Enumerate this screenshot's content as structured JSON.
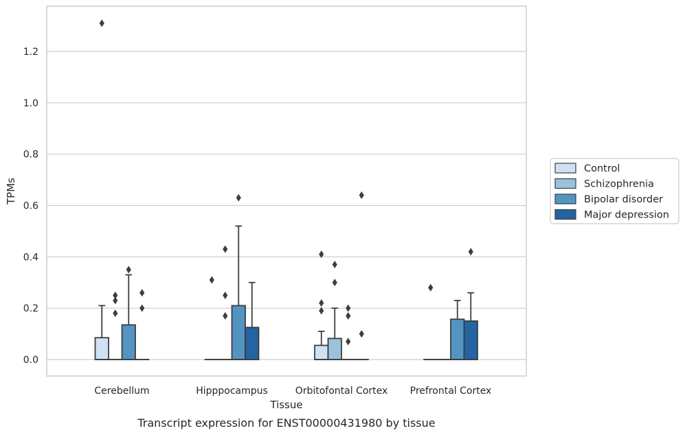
{
  "caption": "Transcript expression for ENST00000431980 by tissue",
  "chart_data": {
    "type": "box",
    "xlabel": "Tissue",
    "ylabel": "TPMs",
    "ylim": [
      -0.065,
      1.36
    ],
    "yticks": [
      0.0,
      0.2,
      0.4,
      0.6,
      0.8,
      1.0,
      1.2
    ],
    "ytick_labels": [
      "0.0",
      "0.2",
      "0.4",
      "0.6",
      "0.8",
      "1.0",
      "1.2"
    ],
    "grid": "horizontal",
    "legend_position": "right-outside",
    "categories": [
      "Cerebellum",
      "Hipppocampus",
      "Orbitofontal Cortex",
      "Prefrontal Cortex"
    ],
    "series": [
      {
        "name": "Control",
        "color": "#d0e1f2",
        "boxes": [
          {
            "q1": 0.0,
            "median": 0.0,
            "q3": 0.085,
            "whisker_low": 0.0,
            "whisker_high": 0.21,
            "outliers": [
              1.31
            ]
          },
          {
            "q1": 0.0,
            "median": 0.0,
            "q3": 0.0,
            "whisker_low": 0.0,
            "whisker_high": 0.0,
            "outliers": [
              0.31
            ]
          },
          {
            "q1": 0.0,
            "median": 0.0,
            "q3": 0.055,
            "whisker_low": 0.0,
            "whisker_high": 0.11,
            "outliers": [
              0.41,
              0.22,
              0.19
            ]
          },
          {
            "q1": 0.0,
            "median": 0.0,
            "q3": 0.0,
            "whisker_low": 0.0,
            "whisker_high": 0.0,
            "outliers": [
              0.28
            ]
          }
        ]
      },
      {
        "name": "Schizophrenia",
        "color": "#9ac2dc",
        "boxes": [
          {
            "q1": 0.0,
            "median": 0.0,
            "q3": 0.0,
            "whisker_low": 0.0,
            "whisker_high": 0.0,
            "outliers": [
              0.25,
              0.23,
              0.18
            ]
          },
          {
            "q1": 0.0,
            "median": 0.0,
            "q3": 0.0,
            "whisker_low": 0.0,
            "whisker_high": 0.0,
            "outliers": [
              0.43,
              0.25,
              0.17
            ]
          },
          {
            "q1": 0.0,
            "median": 0.0,
            "q3": 0.082,
            "whisker_low": 0.0,
            "whisker_high": 0.2,
            "outliers": [
              0.37,
              0.3
            ]
          },
          {
            "q1": 0.0,
            "median": 0.0,
            "q3": 0.0,
            "whisker_low": 0.0,
            "whisker_high": 0.0,
            "outliers": []
          }
        ]
      },
      {
        "name": "Bipolar disorder",
        "color": "#5394c2",
        "boxes": [
          {
            "q1": 0.0,
            "median": 0.0,
            "q3": 0.135,
            "whisker_low": 0.0,
            "whisker_high": 0.33,
            "outliers": [
              0.35
            ]
          },
          {
            "q1": 0.0,
            "median": 0.0,
            "q3": 0.21,
            "whisker_low": 0.0,
            "whisker_high": 0.52,
            "outliers": [
              0.63
            ]
          },
          {
            "q1": 0.0,
            "median": 0.0,
            "q3": 0.0,
            "whisker_low": 0.0,
            "whisker_high": 0.0,
            "outliers": [
              0.2,
              0.17,
              0.07
            ]
          },
          {
            "q1": 0.0,
            "median": 0.0,
            "q3": 0.157,
            "whisker_low": 0.0,
            "whisker_high": 0.23,
            "outliers": []
          }
        ]
      },
      {
        "name": "Major depression",
        "color": "#2364a2",
        "boxes": [
          {
            "q1": 0.0,
            "median": 0.0,
            "q3": 0.0,
            "whisker_low": 0.0,
            "whisker_high": 0.0,
            "outliers": [
              0.26,
              0.2
            ]
          },
          {
            "q1": 0.0,
            "median": 0.0,
            "q3": 0.125,
            "whisker_low": 0.0,
            "whisker_high": 0.3,
            "outliers": []
          },
          {
            "q1": 0.0,
            "median": 0.0,
            "q3": 0.0,
            "whisker_low": 0.0,
            "whisker_high": 0.0,
            "outliers": [
              0.64,
              0.1
            ]
          },
          {
            "q1": 0.0,
            "median": 0.0,
            "q3": 0.15,
            "whisker_low": 0.0,
            "whisker_high": 0.26,
            "outliers": [
              0.42
            ]
          }
        ]
      }
    ]
  }
}
